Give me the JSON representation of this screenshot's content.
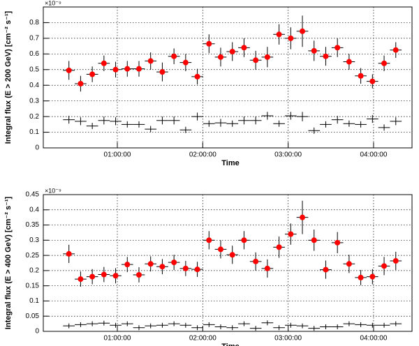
{
  "chart_data": [
    {
      "type": "scatter",
      "multiplier": "×10⁻⁹",
      "y_label": "Integral flux (E > 200 GeV) [cm⁻² s⁻¹]",
      "x_label": "Time",
      "x": [
        "00:26:00",
        "00:34:12",
        "00:42:24",
        "00:50:36",
        "00:58:48",
        "01:07:00",
        "01:15:12",
        "01:23:24",
        "01:31:36",
        "01:39:48",
        "01:48:00",
        "01:56:12",
        "02:04:24",
        "02:12:36",
        "02:20:48",
        "02:29:00",
        "02:37:12",
        "02:45:24",
        "02:53:36",
        "03:01:48",
        "03:10:00",
        "03:18:12",
        "03:26:24",
        "03:34:36",
        "03:42:48",
        "03:51:00",
        "03:59:12",
        "04:07:24",
        "04:15:36"
      ],
      "xerr": "00:04:06",
      "series": [
        {
          "color": "#ff0000",
          "marker": "circle",
          "values": [
            0.495,
            0.41,
            0.47,
            0.54,
            0.5,
            0.505,
            0.505,
            0.555,
            0.485,
            0.585,
            0.545,
            0.455,
            0.665,
            0.58,
            0.615,
            0.64,
            0.56,
            0.58,
            0.725,
            0.7,
            0.745,
            0.62,
            0.585,
            0.64,
            0.55,
            0.46,
            0.425,
            0.54,
            0.625
          ],
          "yerr": [
            0.06,
            0.05,
            0.05,
            0.05,
            0.05,
            0.05,
            0.05,
            0.055,
            0.06,
            0.05,
            0.055,
            0.05,
            0.06,
            0.06,
            0.06,
            0.06,
            0.06,
            0.065,
            0.065,
            0.07,
            0.1,
            0.065,
            0.06,
            0.06,
            0.05,
            0.05,
            0.045,
            0.05,
            0.05
          ]
        },
        {
          "color": "#000000",
          "marker": "none",
          "values": [
            0.18,
            0.17,
            0.14,
            0.175,
            0.17,
            0.15,
            0.15,
            0.12,
            0.175,
            0.175,
            0.115,
            0.2,
            0.155,
            0.16,
            0.155,
            0.175,
            0.175,
            0.205,
            0.155,
            0.205,
            0.2,
            0.11,
            0.15,
            0.18,
            0.155,
            0.15,
            0.185,
            0.13,
            0.17
          ],
          "yerr": [
            0.025,
            0.025,
            0.02,
            0.025,
            0.025,
            0.02,
            0.02,
            0.02,
            0.025,
            0.025,
            0.02,
            0.025,
            0.02,
            0.025,
            0.02,
            0.025,
            0.025,
            0.025,
            0.02,
            0.025,
            0.03,
            0.02,
            0.02,
            0.025,
            0.02,
            0.02,
            0.025,
            0.02,
            0.025
          ]
        }
      ],
      "xlim": [
        "00:08:00",
        "04:27:00"
      ],
      "xticks": [
        "01:00:00",
        "02:00:00",
        "03:00:00",
        "04:00:00"
      ],
      "ylim": [
        0,
        0.9
      ],
      "yticks": [
        0,
        0.1,
        0.2,
        0.3,
        0.4,
        0.5,
        0.6,
        0.7,
        0.8
      ],
      "grid": true,
      "frame_color": "#000000"
    },
    {
      "type": "scatter",
      "multiplier": "×10⁻⁹",
      "y_label": "Integral flux (E > 400 GeV) [cm⁻² s⁻¹]",
      "x_label": "Time",
      "x": [
        "00:26:00",
        "00:34:12",
        "00:42:24",
        "00:50:36",
        "00:58:48",
        "01:07:00",
        "01:15:12",
        "01:23:24",
        "01:31:36",
        "01:39:48",
        "01:48:00",
        "01:56:12",
        "02:04:24",
        "02:12:36",
        "02:20:48",
        "02:29:00",
        "02:37:12",
        "02:45:24",
        "02:53:36",
        "03:01:48",
        "03:10:00",
        "03:18:12",
        "03:26:24",
        "03:34:36",
        "03:42:48",
        "03:51:00",
        "03:59:12",
        "04:07:24",
        "04:15:36"
      ],
      "xerr": "00:04:06",
      "series": [
        {
          "color": "#ff0000",
          "marker": "circle",
          "values": [
            0.255,
            0.172,
            0.18,
            0.187,
            0.183,
            0.22,
            0.186,
            0.222,
            0.213,
            0.227,
            0.207,
            0.204,
            0.3,
            0.27,
            0.252,
            0.3,
            0.23,
            0.207,
            0.277,
            0.32,
            0.375,
            0.3,
            0.203,
            0.292,
            0.222,
            0.177,
            0.18,
            0.215,
            0.232
          ],
          "yerr": [
            0.03,
            0.025,
            0.025,
            0.025,
            0.025,
            0.025,
            0.025,
            0.025,
            0.025,
            0.025,
            0.025,
            0.025,
            0.03,
            0.03,
            0.03,
            0.03,
            0.03,
            0.03,
            0.035,
            0.035,
            0.055,
            0.035,
            0.03,
            0.035,
            0.03,
            0.025,
            0.025,
            0.03,
            0.03
          ]
        },
        {
          "color": "#000000",
          "marker": "none",
          "values": [
            0.018,
            0.022,
            0.025,
            0.027,
            0.02,
            0.025,
            0.012,
            0.018,
            0.02,
            0.025,
            0.02,
            0.012,
            0.022,
            0.015,
            0.012,
            0.025,
            0.01,
            0.028,
            0.012,
            0.02,
            0.018,
            0.01,
            0.015,
            0.015,
            0.025,
            0.022,
            0.02,
            0.02,
            0.025
          ],
          "yerr": [
            0.008,
            0.008,
            0.008,
            0.008,
            0.008,
            0.008,
            0.008,
            0.008,
            0.008,
            0.008,
            0.008,
            0.008,
            0.008,
            0.008,
            0.008,
            0.008,
            0.008,
            0.008,
            0.008,
            0.008,
            0.008,
            0.008,
            0.008,
            0.008,
            0.008,
            0.008,
            0.008,
            0.008,
            0.008
          ]
        }
      ],
      "xlim": [
        "00:08:00",
        "04:27:00"
      ],
      "xticks": [
        "01:00:00",
        "02:00:00",
        "03:00:00",
        "04:00:00"
      ],
      "ylim": [
        0,
        0.45
      ],
      "yticks": [
        0,
        0.05,
        0.1,
        0.15,
        0.2,
        0.25,
        0.3,
        0.35,
        0.4,
        0.45
      ],
      "grid": true,
      "frame_color": "#8b0000"
    }
  ]
}
